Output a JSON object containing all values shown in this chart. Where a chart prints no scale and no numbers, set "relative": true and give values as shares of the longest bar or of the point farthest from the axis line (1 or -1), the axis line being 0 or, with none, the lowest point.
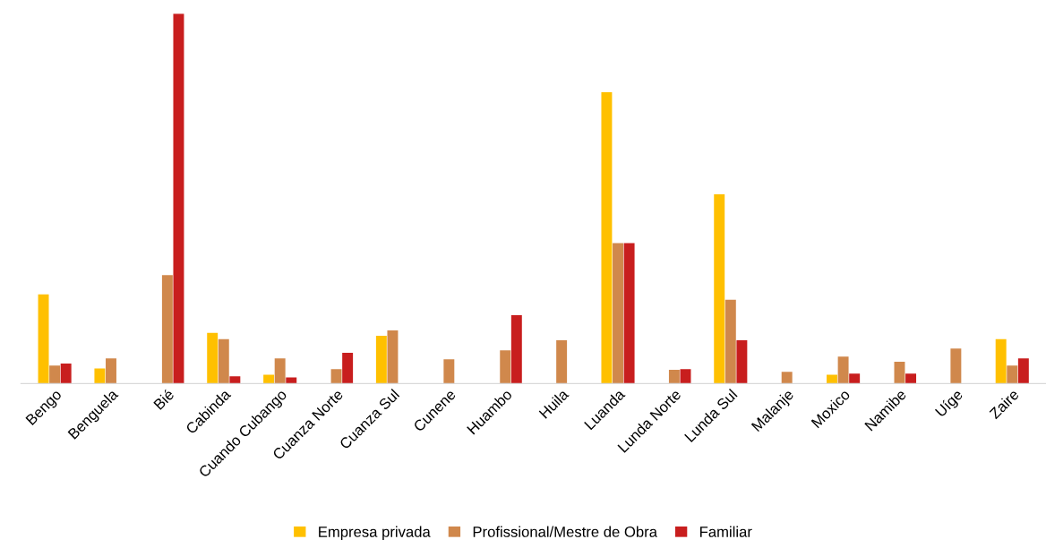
{
  "chart_data": {
    "type": "bar",
    "relative": true,
    "legend": "bottom",
    "grid": false,
    "categories": [
      "Bengo",
      "Benguela",
      "Bié",
      "Cabinda",
      "Cuando Cubango",
      "Cuanza Norte",
      "Cuanza Sul",
      "Cunene",
      "Huambo",
      "Huila",
      "Luanda",
      "Lunda Norte",
      "Lunda Sul",
      "Malanje",
      "Moxico",
      "Namibe",
      "Uíge",
      "Zaire"
    ],
    "series": [
      {
        "name": "Empresa privada",
        "color": "#ffc000",
        "values": [
          0.241,
          0.041,
          null,
          0.137,
          0.024,
          null,
          0.129,
          null,
          null,
          null,
          0.788,
          null,
          0.512,
          null,
          0.024,
          null,
          null,
          0.12
        ]
      },
      {
        "name": "Profissional/Mestre de Obra",
        "color": "#d0884c",
        "values": [
          0.049,
          0.068,
          0.293,
          0.12,
          0.068,
          0.039,
          0.144,
          0.066,
          0.09,
          0.117,
          0.38,
          0.037,
          0.227,
          0.032,
          0.073,
          0.059,
          0.095,
          0.049
        ]
      },
      {
        "name": "Familiar",
        "color": "#c81e1e",
        "values": [
          0.054,
          null,
          1,
          0.02,
          0.017,
          0.083,
          null,
          null,
          0.185,
          null,
          0.38,
          0.039,
          0.117,
          null,
          0.027,
          0.027,
          null,
          0.068
        ]
      }
    ]
  }
}
